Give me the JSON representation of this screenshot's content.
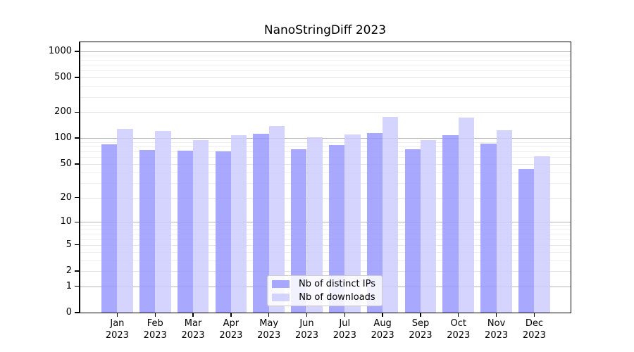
{
  "chart_data": {
    "type": "bar",
    "title": "NanoStringDiff 2023",
    "categories": [
      "Jan",
      "Feb",
      "Mar",
      "Apr",
      "May",
      "Jun",
      "Jul",
      "Aug",
      "Sep",
      "Oct",
      "Nov",
      "Dec"
    ],
    "x_sublabel_year": "2023",
    "series": [
      {
        "name": "Nb of distinct IPs",
        "color": "#9999ff",
        "values": [
          85,
          73,
          72,
          70,
          112,
          74,
          83,
          115,
          74,
          108,
          87,
          44
        ]
      },
      {
        "name": "Nb of downloads",
        "color": "#ccccff",
        "values": [
          128,
          120,
          95,
          108,
          138,
          103,
          110,
          176,
          95,
          174,
          123,
          62
        ]
      }
    ],
    "y_ticks": [
      0,
      1,
      2,
      5,
      10,
      20,
      50,
      100,
      200,
      500,
      1000
    ],
    "y_scale": "log1p",
    "ylim": [
      0,
      1300
    ],
    "grid": true,
    "legend_position": "bottom-center",
    "colors": {
      "grid_major": "#b3b3b3",
      "grid_minor": "#eeeeee",
      "axis": "#000000"
    }
  }
}
